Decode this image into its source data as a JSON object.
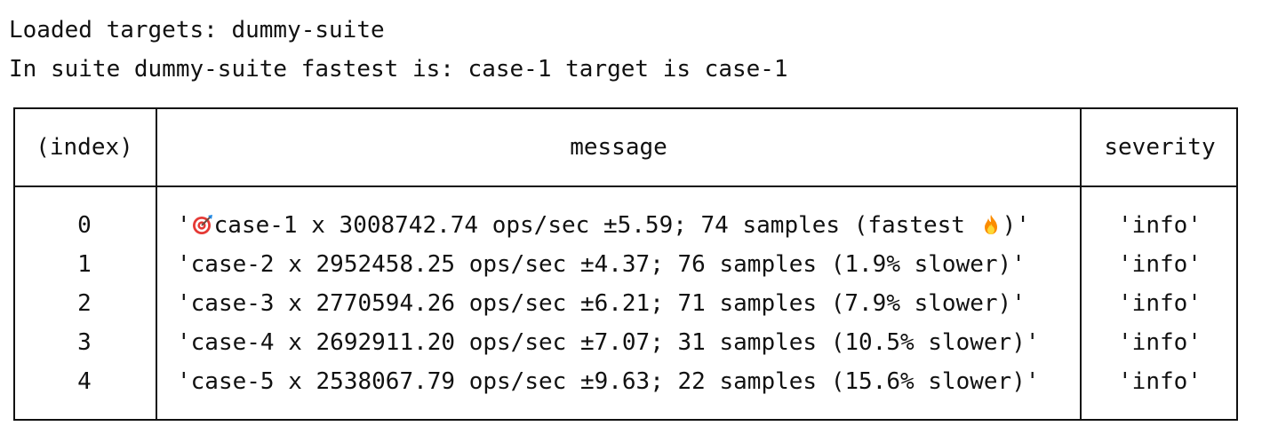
{
  "console": {
    "line1": "Loaded targets: dummy-suite",
    "line2": "In suite dummy-suite fastest is: case-1 target is case-1"
  },
  "table": {
    "headers": {
      "index": "(index)",
      "message": "message",
      "severity": "severity"
    },
    "rows": [
      {
        "index": "0",
        "message_prefix": "'",
        "message_icon": "target-icon",
        "message_text": "case-1 x 3008742.74 ops/sec ±5.59; 74 samples (fastest ",
        "message_suffix_icon": "fire-icon",
        "message_suffix": ")'",
        "severity": "'info'"
      },
      {
        "index": "1",
        "message": "'case-2 x 2952458.25 ops/sec ±4.37; 76 samples (1.9% slower)'",
        "severity": "'info'"
      },
      {
        "index": "2",
        "message": "'case-3 x 2770594.26 ops/sec ±6.21; 71 samples (7.9% slower)'",
        "severity": "'info'"
      },
      {
        "index": "3",
        "message": "'case-4 x 2692911.20 ops/sec ±7.07; 31 samples (10.5% slower)'",
        "severity": "'info'"
      },
      {
        "index": "4",
        "message": "'case-5 x 2538067.79 ops/sec ±9.63; 22 samples (15.6% slower)'",
        "severity": "'info'"
      }
    ]
  }
}
